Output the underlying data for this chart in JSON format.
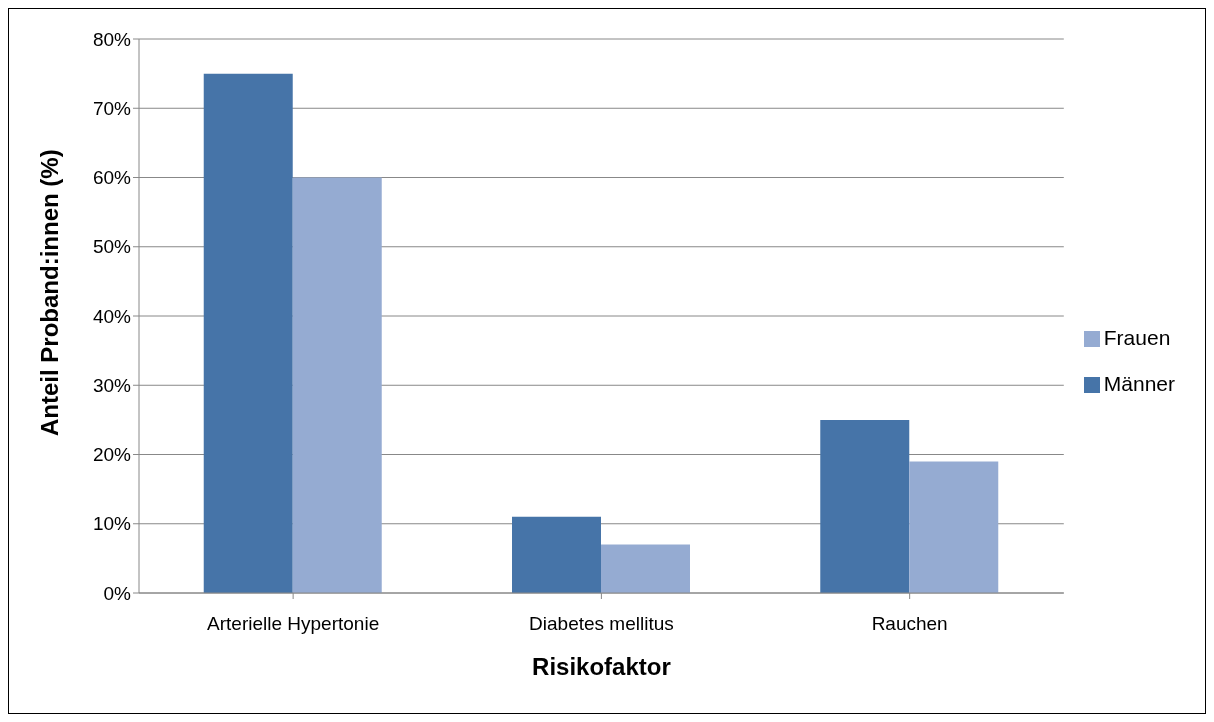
{
  "chart_data": {
    "type": "bar",
    "xlabel": "Risikofaktor",
    "ylabel": "Anteil Proband:innen (%)",
    "categories": [
      "Arterielle Hypertonie",
      "Diabetes mellitus",
      "Rauchen"
    ],
    "series": [
      {
        "name": "Männer",
        "color": "#4674a8",
        "values": [
          75,
          11,
          25
        ]
      },
      {
        "name": "Frauen",
        "color": "#95abd2",
        "values": [
          60,
          7,
          19
        ]
      }
    ],
    "ylim": [
      0,
      80
    ],
    "yticks": [
      {
        "value": 0,
        "label": "0%"
      },
      {
        "value": 10,
        "label": "10%"
      },
      {
        "value": 20,
        "label": "20%"
      },
      {
        "value": 30,
        "label": "30%"
      },
      {
        "value": 40,
        "label": "40%"
      },
      {
        "value": 50,
        "label": "50%"
      },
      {
        "value": 60,
        "label": "60%"
      },
      {
        "value": 70,
        "label": "70%"
      },
      {
        "value": 80,
        "label": "80%"
      }
    ],
    "grid": "y",
    "legend": "right"
  }
}
